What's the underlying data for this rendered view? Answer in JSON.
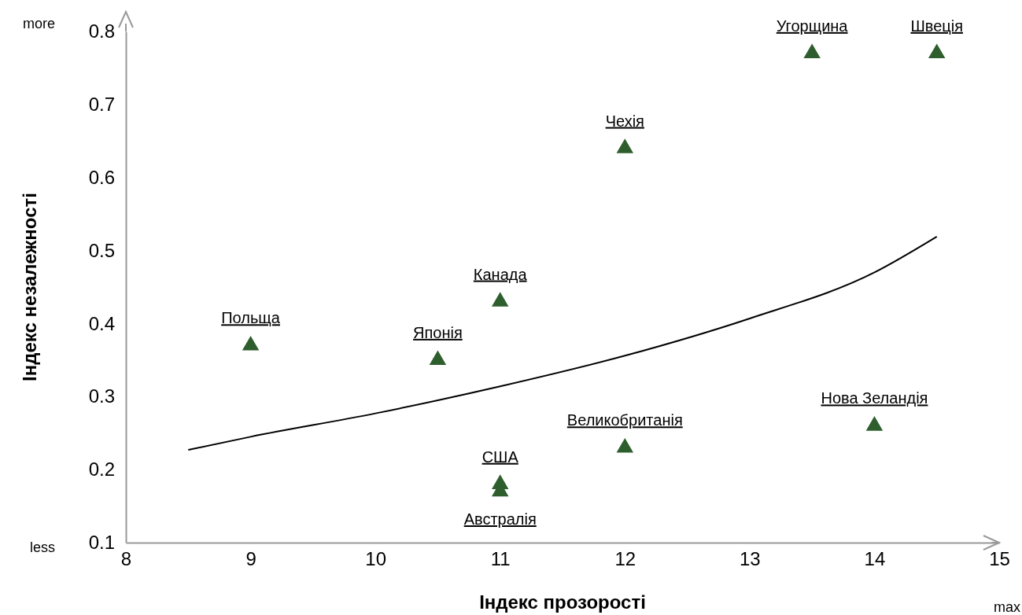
{
  "chart_data": {
    "type": "scatter",
    "xlabel": "Індекс прозорості",
    "ylabel": "Індекс незалежності",
    "xlim": [
      8,
      15
    ],
    "xticks": [
      8,
      9,
      10,
      11,
      12,
      13,
      14,
      15
    ],
    "ylim": [
      0.1,
      0.8
    ],
    "yticks": [
      0.1,
      0.2,
      0.3,
      0.4,
      0.5,
      0.6,
      0.7,
      0.8
    ],
    "grid": false,
    "marker": "triangle",
    "series": [
      {
        "color": "#2e5e2e",
        "x": [
          9,
          10.5,
          11,
          12,
          13.5,
          14.5,
          11,
          11,
          12,
          14
        ],
        "values": [
          0.37,
          0.35,
          0.43,
          0.64,
          0.77,
          0.77,
          0.18,
          0.17,
          0.23,
          0.26
        ]
      },
      {
        "type": "line",
        "color": "#000000",
        "marker": "none",
        "line_style": "solid",
        "x": [
          8.5,
          9,
          10,
          11,
          12,
          13,
          14,
          14.5
        ],
        "values": [
          0.227,
          0.245,
          0.277,
          0.314,
          0.356,
          0.407,
          0.47,
          0.519
        ]
      }
    ],
    "annotations": [
      "more",
      "less",
      "max",
      {
        "text": "Польща",
        "x": 9,
        "y": 0.37
      },
      {
        "text": "Японія",
        "x": 10.5,
        "y": 0.35
      },
      {
        "text": "Канада",
        "x": 11,
        "y": 0.43
      },
      {
        "text": "Чехія",
        "x": 12,
        "y": 0.64
      },
      {
        "text": "Угорщина",
        "x": 13.5,
        "y": 0.77
      },
      {
        "text": "Швеція",
        "x": 14.5,
        "y": 0.77
      },
      {
        "text": "США",
        "x": 11,
        "y": 0.18
      },
      {
        "text": "Австралія",
        "x": 11,
        "y": 0.17
      },
      {
        "text": "Великобританія",
        "x": 12,
        "y": 0.23
      },
      {
        "text": "Нова Зеландія",
        "x": 14,
        "y": 0.26
      }
    ]
  }
}
